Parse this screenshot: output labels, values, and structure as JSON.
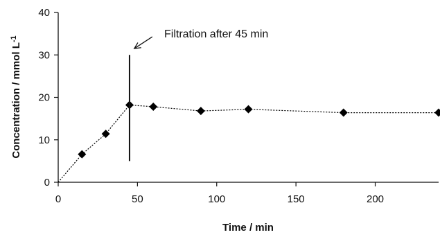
{
  "chart_data": {
    "type": "line",
    "title": "",
    "xlabel": "Time / min",
    "ylabel": "Concentration / mmol L",
    "ylabel_superscript": "-1",
    "xlim": [
      0,
      240
    ],
    "ylim": [
      0,
      40
    ],
    "xticks": [
      0,
      50,
      100,
      150,
      200
    ],
    "yticks": [
      0,
      10,
      20,
      30,
      40
    ],
    "grid": false,
    "legend": "none",
    "series": [
      {
        "marker": "diamond",
        "line_style": "dotted",
        "color": "#000000",
        "x": [
          0,
          15,
          30,
          45,
          60,
          90,
          120,
          180,
          240
        ],
        "y": [
          0,
          6.6,
          11.4,
          18.2,
          17.8,
          16.8,
          17.2,
          16.4,
          16.4
        ],
        "marker_mask": [
          false,
          true,
          true,
          true,
          true,
          true,
          true,
          true,
          true
        ]
      }
    ],
    "vertical_line": {
      "x": 45,
      "y_from": 5,
      "y_to": 30
    },
    "annotation": {
      "text": "Filtration after 45 min",
      "arrow_to": {
        "x": 48,
        "y": 31.5
      }
    }
  }
}
